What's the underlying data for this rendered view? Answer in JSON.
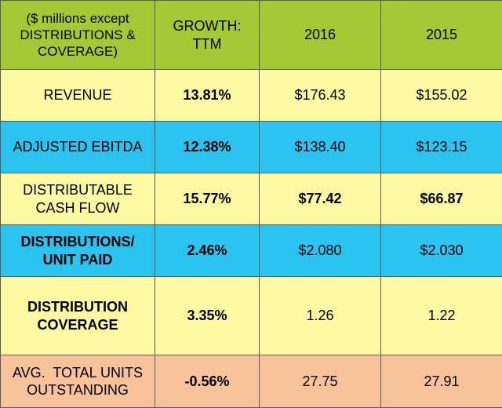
{
  "colors": {
    "header": "#a3c934",
    "yellow": "#fcf9a2",
    "blue": "#2bc3ef",
    "peach": "#f8c39a"
  },
  "header": {
    "label": "($ millions except DISTRIBUTIONS & COVERAGE)",
    "growth": "GROWTH: TTM",
    "year1": "2016",
    "year2": "2015"
  },
  "rows": [
    {
      "label": "REVENUE",
      "growth": "13.81%",
      "y1": "$176.43",
      "y2": "$155.02"
    },
    {
      "label": "ADJUSTED EBITDA",
      "growth": "12.38%",
      "y1": "$138.40",
      "y2": "$123.15"
    },
    {
      "label": "DISTRIBUTABLE CASH FLOW",
      "growth": "15.77%",
      "y1": "$77.42",
      "y2": "$66.87"
    },
    {
      "label": "DISTRIBUTIONS/ UNIT PAID",
      "growth": "2.46%",
      "y1": "$2.080",
      "y2": "$2.030"
    },
    {
      "label": "DISTRIBUTION COVERAGE",
      "growth": "3.35%",
      "y1": "1.26",
      "y2": "1.22"
    },
    {
      "label": "AVG.  TOTAL UNITS OUTSTANDING",
      "growth": "-0.56%",
      "y1": "27.75",
      "y2": "27.91"
    }
  ]
}
